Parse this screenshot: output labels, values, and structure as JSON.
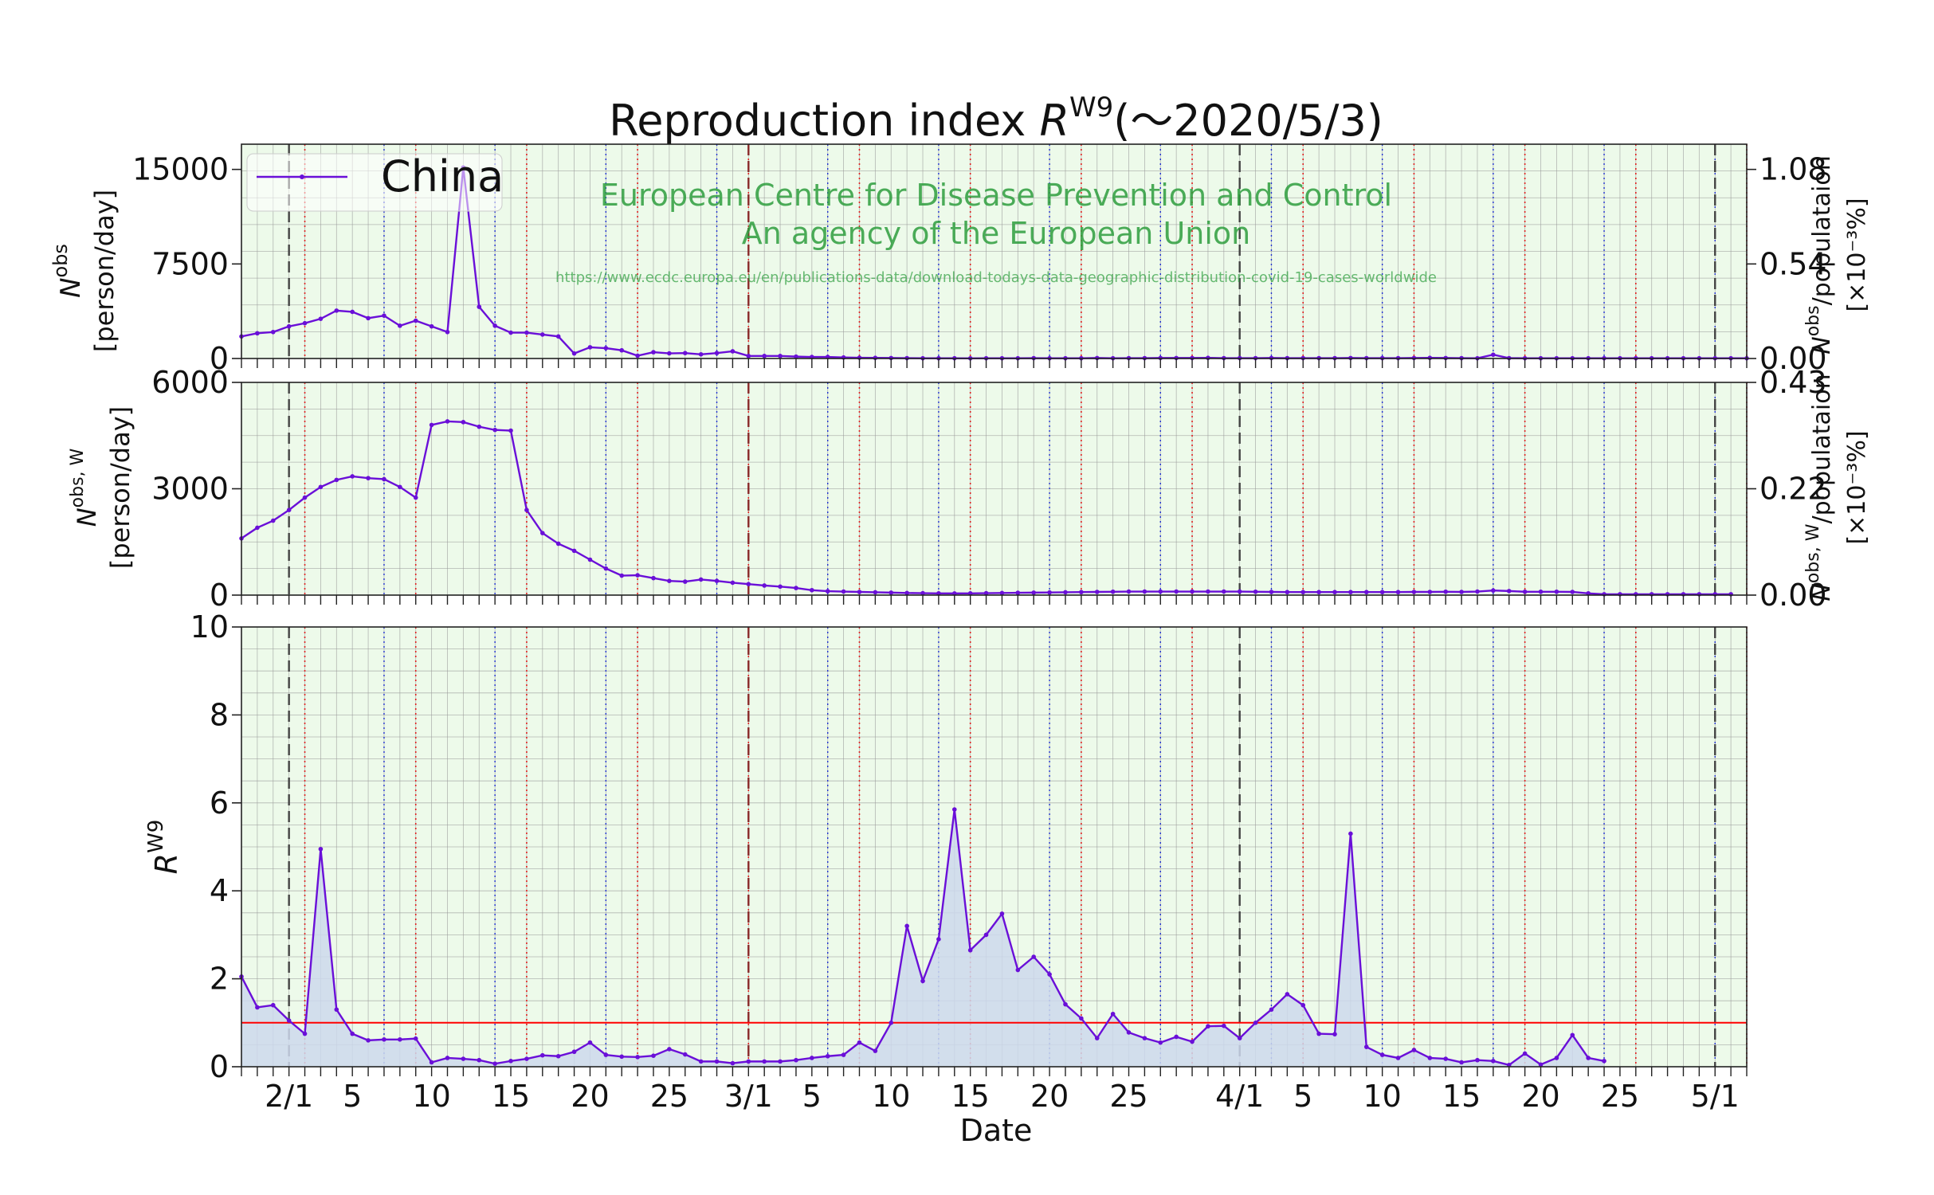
{
  "title": {
    "prefix": "Reproduction index ",
    "var": "R",
    "sup": "W9",
    "suffix": "(～2020/5/3)"
  },
  "legend": {
    "label": "China"
  },
  "watermark": {
    "line1": "European Centre for Disease Prevention and Control",
    "line2": "An agency of the European Union",
    "url": "https://www.ecdc.europa.eu/en/publications-data/download-todays-data-geographic-distribution-covid-19-cases-worldwide"
  },
  "axes": {
    "top": {
      "ylabel_var": "N",
      "ylabel_sup": "obs",
      "ylabel_unit": "[person/day]",
      "y2label_main": "N",
      "y2label_sup": "obs",
      "y2label_rest": "/populataion",
      "y2label_unit": "[×10⁻³%]"
    },
    "mid": {
      "ylabel_var": "N",
      "ylabel_sup": "obs, W",
      "ylabel_unit": "[person/day]",
      "y2label_main": "N",
      "y2label_sup": "obs, W",
      "y2label_rest": "/populataion",
      "y2label_unit": "[×10⁻³%]"
    },
    "bot": {
      "ylabel_var": "R",
      "ylabel_sup": "W9"
    },
    "xlabel": "Date"
  },
  "colors": {
    "line": "#6a0fd8",
    "fill": "#ccd8ec",
    "panel_bg": "#edfaea",
    "grid": "#9a9a9a",
    "month_line": "#444444",
    "red_dotted": "#e02020",
    "blue_dotted": "#2030d0",
    "threshold": "#ff0000",
    "watermark": "#2e9e3e"
  },
  "chart_data": {
    "type": "line",
    "x_start": "2020-01-29",
    "x_end": "2020-05-03",
    "x_ticks": [
      {
        "day": 3,
        "label": "2/1"
      },
      {
        "day": 7,
        "label": "5"
      },
      {
        "day": 12,
        "label": "10"
      },
      {
        "day": 17,
        "label": "15"
      },
      {
        "day": 22,
        "label": "20"
      },
      {
        "day": 27,
        "label": "25"
      },
      {
        "day": 32,
        "label": "3/1"
      },
      {
        "day": 36,
        "label": "5"
      },
      {
        "day": 41,
        "label": "10"
      },
      {
        "day": 46,
        "label": "15"
      },
      {
        "day": 51,
        "label": "20"
      },
      {
        "day": 56,
        "label": "25"
      },
      {
        "day": 63,
        "label": "4/1"
      },
      {
        "day": 67,
        "label": "5"
      },
      {
        "day": 72,
        "label": "10"
      },
      {
        "day": 77,
        "label": "15"
      },
      {
        "day": 82,
        "label": "20"
      },
      {
        "day": 87,
        "label": "25"
      },
      {
        "day": 93,
        "label": "5/1"
      }
    ],
    "panels": [
      {
        "id": "top",
        "ylim": [
          0,
          17000
        ],
        "yticks": [
          0,
          7500,
          15000
        ],
        "y2ticks": [
          "0.00",
          "0.54",
          "1.08"
        ],
        "series": [
          {
            "name": "China",
            "values": [
              1750,
              2000,
              2100,
              2550,
              2800,
              3150,
              3800,
              3700,
              3200,
              3400,
              2600,
              3000,
              2550,
              2100,
              15150,
              4100,
              2600,
              2050,
              2050,
              1900,
              1750,
              400,
              890,
              820,
              650,
              220,
              500,
              410,
              430,
              330,
              430,
              570,
              200,
              200,
              200,
              150,
              120,
              120,
              80,
              60,
              50,
              40,
              30,
              20,
              20,
              20,
              15,
              20,
              20,
              20,
              30,
              20,
              20,
              20,
              40,
              20,
              30,
              30,
              40,
              40,
              40,
              50,
              30,
              30,
              30,
              40,
              30,
              30,
              30,
              30,
              40,
              30,
              30,
              30,
              40,
              50,
              40,
              30,
              20,
              300,
              30,
              20,
              20,
              20,
              20,
              20,
              20,
              20,
              20,
              20,
              20,
              20,
              20,
              20,
              20,
              20
            ]
          }
        ]
      },
      {
        "id": "mid",
        "ylim": [
          0,
          6000
        ],
        "yticks": [
          0,
          3000,
          6000
        ],
        "y2ticks": [
          "0.00",
          "0.22",
          "0.43"
        ],
        "series": [
          {
            "name": "China",
            "values": [
              1600,
              1900,
              2100,
              2400,
              2750,
              3050,
              3250,
              3350,
              3300,
              3270,
              3050,
              2750,
              4800,
              4900,
              4880,
              4750,
              4660,
              4640,
              2400,
              1750,
              1450,
              1250,
              1000,
              750,
              550,
              560,
              480,
              400,
              380,
              440,
              400,
              350,
              310,
              270,
              240,
              200,
              140,
              110,
              100,
              90,
              80,
              70,
              60,
              55,
              50,
              48,
              50,
              55,
              60,
              65,
              70,
              75,
              80,
              85,
              90,
              95,
              100,
              100,
              100,
              100,
              100,
              100,
              100,
              100,
              95,
              90,
              85,
              85,
              85,
              85,
              85,
              85,
              85,
              85,
              90,
              90,
              95,
              90,
              100,
              130,
              115,
              95,
              95,
              95,
              90,
              50,
              25,
              25,
              25,
              25,
              25,
              25,
              25,
              25,
              25
            ]
          }
        ]
      },
      {
        "id": "bot",
        "ylim": [
          0,
          10
        ],
        "yticks": [
          0,
          2,
          4,
          6,
          8,
          10
        ],
        "threshold": 1,
        "series": [
          {
            "name": "China",
            "values": [
              2.05,
              1.35,
              1.4,
              1.05,
              0.75,
              4.95,
              1.3,
              0.75,
              0.6,
              0.62,
              0.62,
              0.64,
              0.1,
              0.2,
              0.18,
              0.15,
              0.07,
              0.13,
              0.18,
              0.26,
              0.24,
              0.34,
              0.55,
              0.27,
              0.23,
              0.22,
              0.25,
              0.4,
              0.28,
              0.12,
              0.12,
              0.08,
              0.12,
              0.12,
              0.12,
              0.15,
              0.2,
              0.24,
              0.27,
              0.55,
              0.36,
              1.0,
              3.2,
              1.95,
              2.9,
              5.85,
              2.65,
              3.0,
              3.48,
              2.2,
              2.5,
              2.1,
              1.42,
              1.1,
              0.65,
              1.2,
              0.78,
              0.65,
              0.55,
              0.68,
              0.57,
              0.92,
              0.93,
              0.65,
              1.0,
              1.3,
              1.65,
              1.4,
              0.75,
              0.74,
              5.3,
              0.45,
              0.27,
              0.2,
              0.38,
              0.2,
              0.18,
              0.1,
              0.15,
              0.13,
              0.04,
              0.3,
              0.05,
              0.2,
              0.72,
              0.2,
              0.13
            ]
          }
        ]
      }
    ],
    "month_boundary_days": [
      3,
      32,
      63,
      93
    ],
    "red_dotted_days": [
      4,
      11,
      18,
      25,
      32,
      39,
      46,
      53,
      60,
      67,
      74,
      81,
      88,
      95
    ],
    "blue_dotted_days": [
      9,
      16,
      23,
      30,
      37,
      44,
      51,
      58,
      65,
      72,
      79,
      86,
      93
    ]
  }
}
